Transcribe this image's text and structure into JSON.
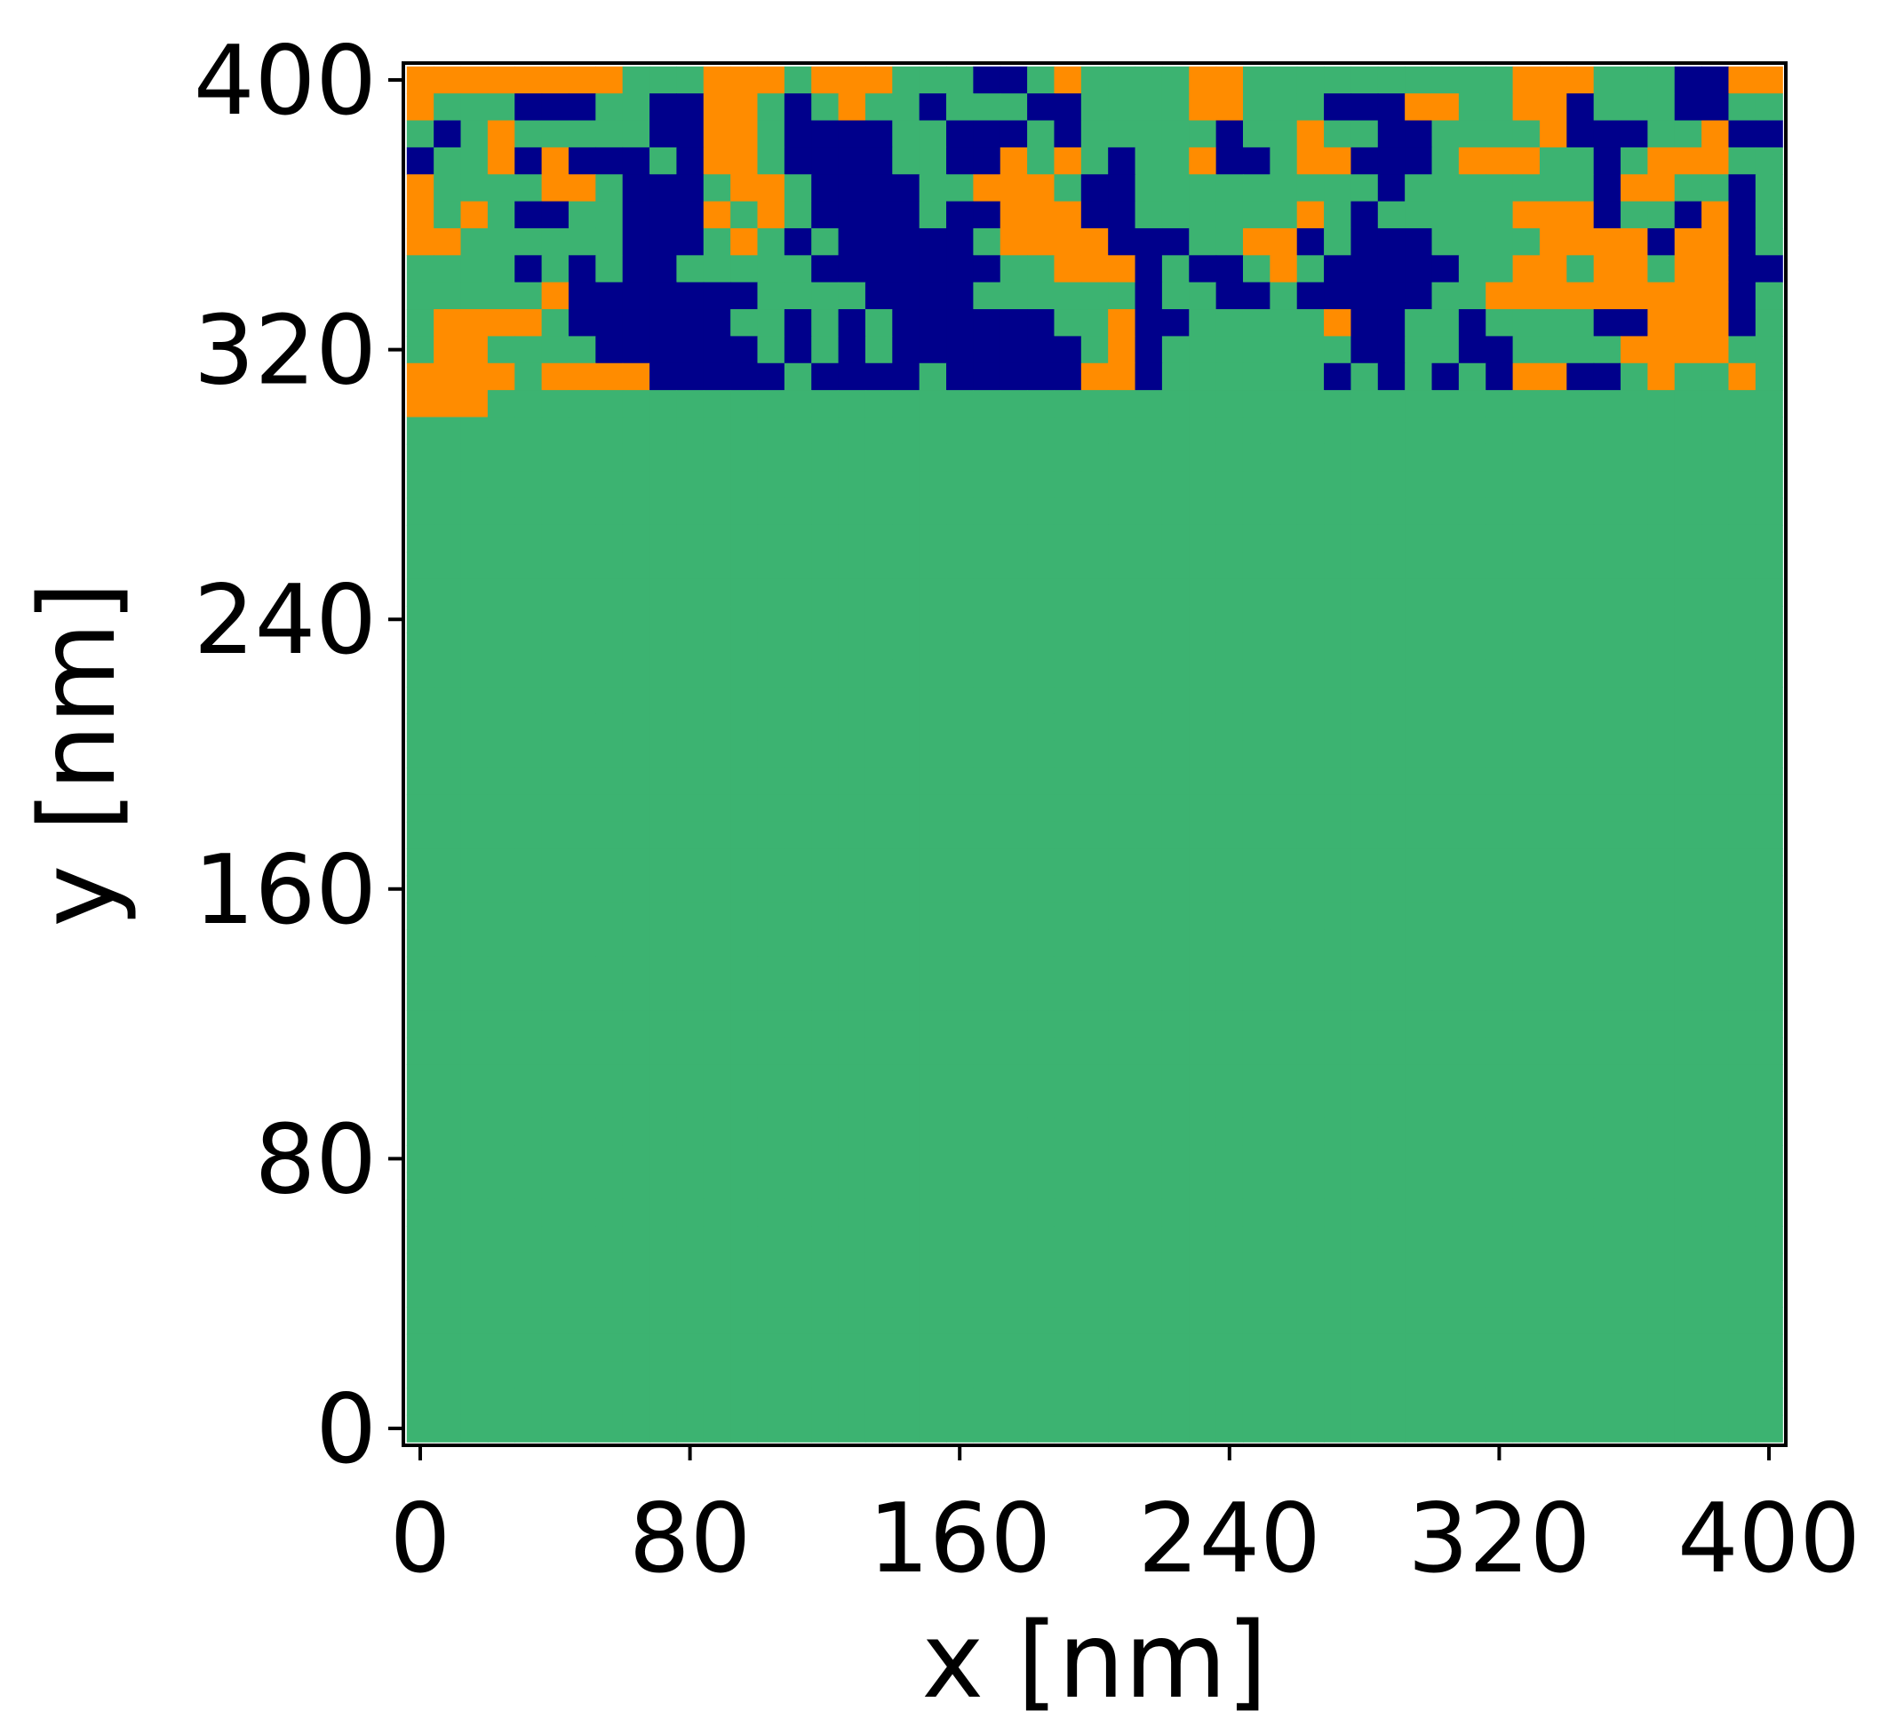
{
  "chart_data": {
    "type": "heatmap",
    "title": "",
    "xlabel": "x [nm]",
    "ylabel": "y [nm]",
    "xlim": [
      -5,
      405
    ],
    "ylim": [
      -5,
      405
    ],
    "xticks": [
      0,
      80,
      160,
      240,
      320,
      400
    ],
    "yticks": [
      0,
      80,
      160,
      240,
      320,
      400
    ],
    "xtick_labels": [
      "0",
      "80",
      "160",
      "240",
      "320",
      "400"
    ],
    "ytick_labels": [
      "0",
      "80",
      "160",
      "240",
      "320",
      "400"
    ],
    "grid": false,
    "colorbar": false,
    "cell_size_nm": 8,
    "grid_shape": [
      51,
      51
    ],
    "phases": [
      {
        "code": "A",
        "color": "#00008b"
      },
      {
        "code": "B",
        "color": "#3cb371"
      },
      {
        "code": "C",
        "color": "#ff8c00"
      }
    ],
    "rows_top_to_bottom": [
      "CCCCCCCCBBBCCCBCCCBBBAABCBBBBCCBBBBBBBBBBCCCBBBAACC",
      "CBBBAAABBAACCBABCBBABBBAABBBBCCBBBAAACCBBCCABBBAABB",
      "BABCBBBBBAACCBAAAABBAAABABBBBBABBCBBAABBBBCAAABBCAA",
      "ABBCACAAABACCBAAAABBAACBCBABBCAABCCAAABCCCBBABCCCBB",
      "CBBBBCCBAAABCCBAAAABBCCCBAABBBBBBBBBABBBBBBBACCBBAB",
      "CBCBAABBAAACBCBAAAABAACCCAABBBBBBCBABBBBBCCCABBACAB",
      "CCBBBBBBAAABCBABAAAAABCCCCAAABBCCABAAABBBBCCCCACCAB",
      "BBBBABABAABBBBBAAAAAAABBCCCABAABCBAAAAABBCCBCCBCCAA",
      "BBBBBCAAAAAAABBBBAAAABBBBBBABBAABAAAAABBCCCCCCCCCAB",
      "BCCCCBAAAAAABBABABAAAAAABBCAABBBBBCAABBABBBBAACCCAB",
      "BCCBBBBAAAAAABABABAAAAAAABCABBBBBBBAABBAABBBBCCCCBB",
      "CCCCBCCCCAAAAABAAAABAAAAACCABBBBBBABABABACCAABCBBCB",
      "CCCBBBBBBBBBBBBBBBBBBBBBBBBBBBBBBBBBBBBBBBBBBBBBBBB",
      "BBBBBBBBBBBBBBBBBBBBBBBBBBBBBBBBBBBBBBBBBBBBBBBBBBB",
      "BBBBBBBBBBBBBBBBBBBBBBBBBBBBBBBBBBBBBBBBBBBBBBBBBBB",
      "BBBBBBBBBBBBBBBBBBBBBBBBBBBBBBBBBBBBBBBBBBBBBBBBBBB",
      "BBBBBBBBBBBBBBBBBBBBBBBBBBBBBBBBBBBBBBBBBBBBBBBBBBB",
      "BBBBBBBBBBBBBBBBBBBBBBBBBBBBBBBBBBBBBBBBBBBBBBBBBBB",
      "BBBBBBBBBBBBBBBBBBBBBBBBBBBBBBBBBBBBBBBBBBBBBBBBBBB",
      "BBBBBBBBBBBBBBBBBBBBBBBBBBBBBBBBBBBBBBBBBBBBBBBBBBB",
      "BBBBBBBBBBBBBBBBBBBBBBBBBBBBBBBBBBBBBBBBBBBBBBBBBBB",
      "BBBBBBBBBBBBBBBBBBBBBBBBBBBBBBBBBBBBBBBBBBBBBBBBBBB",
      "BBBBBBBBBBBBBBBBBBBBBBBBBBBBBBBBBBBBBBBBBBBBBBBBBBB",
      "BBBBBBBBBBBBBBBBBBBBBBBBBBBBBBBBBBBBBBBBBBBBBBBBBBB",
      "BBBBBBBBBBBBBBBBBBBBBBBBBBBBBBBBBBBBBBBBBBBBBBBBBBB",
      "BBBBBBBBBBBBBBBBBBBBBBBBBBBBBBBBBBBBBBBBBBBBBBBBBBB",
      "BBBBBBBBBBBBBBBBBBBBBBBBBBBBBBBBBBBBBBBBBBBBBBBBBBB",
      "BBBBBBBBBBBBBBBBBBBBBBBBBBBBBBBBBBBBBBBBBBBBBBBBBBB",
      "BBBBBBBBBBBBBBBBBBBBBBBBBBBBBBBBBBBBBBBBBBBBBBBBBBB",
      "BBBBBBBBBBBBBBBBBBBBBBBBBBBBBBBBBBBBBBBBBBBBBBBBBBB",
      "BBBBBBBBBBBBBBBBBBBBBBBBBBBBBBBBBBBBBBBBBBBBBBBBBBB",
      "BBBBBBBBBBBBBBBBBBBBBBBBBBBBBBBBBBBBBBBBBBBBBBBBBBB",
      "BBBBBBBBBBBBBBBBBBBBBBBBBBBBBBBBBBBBBBBBBBBBBBBBBBB",
      "BBBBBBBBBBBBBBBBBBBBBBBBBBBBBBBBBBBBBBBBBBBBBBBBBBB",
      "BBBBBBBBBBBBBBBBBBBBBBBBBBBBBBBBBBBBBBBBBBBBBBBBBBB",
      "BBBBBBBBBBBBBBBBBBBBBBBBBBBBBBBBBBBBBBBBBBBBBBBBBBB",
      "BBBBBBBBBBBBBBBBBBBBBBBBBBBBBBBBBBBBBBBBBBBBBBBBBBB",
      "BBBBBBBBBBBBBBBBBBBBBBBBBBBBBBBBBBBBBBBBBBBBBBBBBBB",
      "BBBBBBBBBBBBBBBBBBBBBBBBBBBBBBBBBBBBBBBBBBBBBBBBBBB",
      "BBBBBBBBBBBBBBBBBBBBBBBBBBBBBBBBBBBBBBBBBBBBBBBBBBB",
      "BBBBBBBBBBBBBBBBBBBBBBBBBBBBBBBBBBBBBBBBBBBBBBBBBBB",
      "BBBBBBBBBBBBBBBBBBBBBBBBBBBBBBBBBBBBBBBBBBBBBBBBBBB",
      "BBBBBBBBBBBBBBBBBBBBBBBBBBBBBBBBBBBBBBBBBBBBBBBBBBB",
      "BBBBBBBBBBBBBBBBBBBBBBBBBBBBBBBBBBBBBBBBBBBBBBBBBBB",
      "BBBBBBBBBBBBBBBBBBBBBBBBBBBBBBBBBBBBBBBBBBBBBBBBBBB",
      "BBBBBBBBBBBBBBBBBBBBBBBBBBBBBBBBBBBBBBBBBBBBBBBBBBB",
      "BBBBBBBBBBBBBBBBBBBBBBBBBBBBBBBBBBBBBBBBBBBBBBBBBBB",
      "BBBBBBBBBBBBBBBBBBBBBBBBBBBBBBBBBBBBBBBBBBBBBBBBBBB",
      "BBBBBBBBBBBBBBBBBBBBBBBBBBBBBBBBBBBBBBBBBBBBBBBBBBB",
      "BBBBBBBBBBBBBBBBBBBBBBBBBBBBBBBBBBBBBBBBBBBBBBBBBBB",
      "BBBBBBBBBBBBBBBBBBBBBBBBBBBBBBBBBBBBBBBBBBBBBBBBBBB"
    ]
  }
}
